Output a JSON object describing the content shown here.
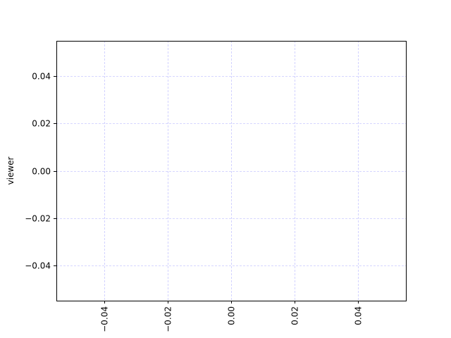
{
  "chart_data": {
    "type": "scatter",
    "title": "",
    "xlabel": "",
    "ylabel": "viewer",
    "x": [],
    "y": [],
    "xlim": [
      -0.055,
      0.055
    ],
    "ylim": [
      -0.055,
      0.055
    ],
    "xticks": [
      -0.04,
      -0.02,
      0.0,
      0.02,
      0.04
    ],
    "xtick_labels": [
      "−0.04",
      "−0.02",
      "0.00",
      "0.02",
      "0.04"
    ],
    "yticks": [
      -0.04,
      -0.02,
      0.0,
      0.02,
      0.04
    ],
    "ytick_labels": [
      "−0.04",
      "−0.02",
      "0.00",
      "0.02",
      "0.04"
    ],
    "xtick_rotation_deg": 90,
    "grid": true,
    "grid_color": "#b0b0ff",
    "grid_style": "dashed"
  }
}
